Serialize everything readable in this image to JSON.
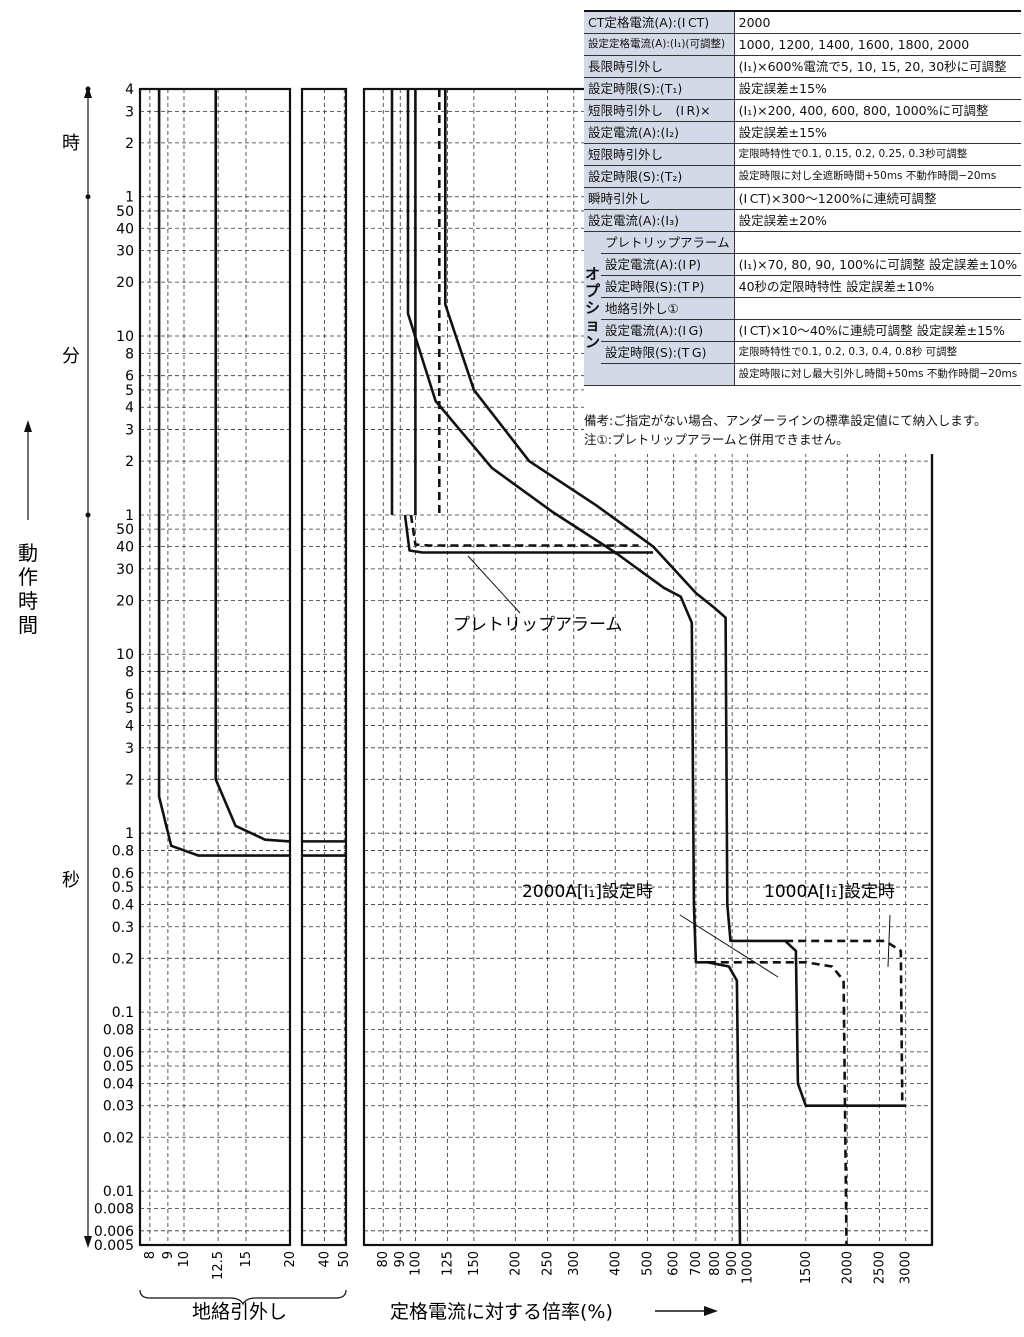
{
  "chart_data": {
    "type": "line",
    "title": "",
    "ylabel": "動作時間",
    "xlabel": "定格電流に対する倍率(%)",
    "xlabel_ground": "地絡引外し",
    "y_scale": "log",
    "ylim": [
      0.005,
      14400
    ],
    "y_ticks": [
      {
        "v": 0.005,
        "l": "0.005"
      },
      {
        "v": 0.006,
        "l": "0.006"
      },
      {
        "v": 0.008,
        "l": "0.008"
      },
      {
        "v": 0.01,
        "l": "0.01"
      },
      {
        "v": 0.02,
        "l": "0.02"
      },
      {
        "v": 0.03,
        "l": "0.03"
      },
      {
        "v": 0.04,
        "l": "0.04"
      },
      {
        "v": 0.05,
        "l": "0.05"
      },
      {
        "v": 0.06,
        "l": "0.06"
      },
      {
        "v": 0.08,
        "l": "0.08"
      },
      {
        "v": 0.1,
        "l": "0.1"
      },
      {
        "v": 0.2,
        "l": "0.2"
      },
      {
        "v": 0.3,
        "l": "0.3"
      },
      {
        "v": 0.4,
        "l": "0.4"
      },
      {
        "v": 0.5,
        "l": "0.5"
      },
      {
        "v": 0.6,
        "l": "0.6"
      },
      {
        "v": 0.8,
        "l": "0.8"
      },
      {
        "v": 1,
        "l": "1"
      },
      {
        "v": 2,
        "l": "2"
      },
      {
        "v": 3,
        "l": "3"
      },
      {
        "v": 4,
        "l": "4"
      },
      {
        "v": 5,
        "l": "5"
      },
      {
        "v": 6,
        "l": "6"
      },
      {
        "v": 8,
        "l": "8"
      },
      {
        "v": 10,
        "l": "10"
      },
      {
        "v": 20,
        "l": "20"
      },
      {
        "v": 30,
        "l": "30"
      },
      {
        "v": 40,
        "l": "40"
      },
      {
        "v": 50,
        "l": "50"
      },
      {
        "v": 60,
        "l": "1"
      },
      {
        "v": 120,
        "l": "2"
      },
      {
        "v": 180,
        "l": "3"
      },
      {
        "v": 240,
        "l": "4"
      },
      {
        "v": 300,
        "l": "5"
      },
      {
        "v": 360,
        "l": "6"
      },
      {
        "v": 480,
        "l": "8"
      },
      {
        "v": 600,
        "l": "10"
      },
      {
        "v": 1200,
        "l": "20"
      },
      {
        "v": 1800,
        "l": "30"
      },
      {
        "v": 2400,
        "l": "40"
      },
      {
        "v": 3000,
        "l": "50"
      },
      {
        "v": 3600,
        "l": "1"
      },
      {
        "v": 7200,
        "l": "2"
      },
      {
        "v": 10800,
        "l": "3"
      },
      {
        "v": 14400,
        "l": "4"
      }
    ],
    "time_units": [
      {
        "label": "時",
        "from": 3600,
        "to": 14400
      },
      {
        "label": "分",
        "from": 60,
        "to": 3600
      },
      {
        "label": "秒",
        "from": 0.005,
        "to": 60
      }
    ],
    "x_panels": [
      {
        "name": "ground",
        "ticks": [
          "8",
          "9",
          "10",
          "12.5",
          "15",
          "20"
        ]
      },
      {
        "name": "mid",
        "ticks": [
          "40",
          "50"
        ]
      },
      {
        "name": "main",
        "ticks": [
          "80",
          "90",
          "100",
          "125",
          "150",
          "200",
          "250",
          "300",
          "400",
          "500",
          "600",
          "700",
          "800",
          "900",
          "1000",
          "1500",
          "2000",
          "2500",
          "3000"
        ]
      }
    ],
    "series": [
      {
        "name": "2000A[I₁]設定時",
        "style": "solid",
        "points": [
          [
            95,
            14400
          ],
          [
            95,
            800
          ],
          [
            115,
            260
          ],
          [
            170,
            110
          ],
          [
            260,
            62
          ],
          [
            400,
            37
          ],
          [
            560,
            23.5
          ],
          [
            630,
            21
          ],
          [
            680,
            15
          ],
          [
            690,
            0.4
          ],
          [
            700,
            0.19
          ],
          [
            760,
            0.19
          ],
          [
            880,
            0.18
          ],
          [
            930,
            0.15
          ],
          [
            950,
            0.005
          ]
        ]
      },
      {
        "name": "2000A[I₁]設定時",
        "style": "dashed",
        "points": [
          [
            760,
            0.19
          ],
          [
            1500,
            0.19
          ],
          [
            1800,
            0.18
          ],
          [
            1950,
            0.15
          ],
          [
            1990,
            0.005
          ]
        ]
      },
      {
        "name": "1000A[I₁]設定時",
        "style": "solid",
        "points": [
          [
            123,
            14400
          ],
          [
            123,
            900
          ],
          [
            150,
            300
          ],
          [
            220,
            120
          ],
          [
            350,
            68
          ],
          [
            520,
            40
          ],
          [
            700,
            22
          ],
          [
            800,
            18
          ],
          [
            860,
            16
          ],
          [
            870,
            0.4
          ],
          [
            890,
            0.25
          ],
          [
            1300,
            0.25
          ],
          [
            1400,
            0.22
          ],
          [
            1420,
            0.04
          ],
          [
            1500,
            0.03
          ],
          [
            3000,
            0.03
          ]
        ]
      },
      {
        "name": "1000A[I₁]設定時",
        "style": "dashed",
        "points": [
          [
            1300,
            0.25
          ],
          [
            2600,
            0.25
          ],
          [
            2900,
            0.22
          ],
          [
            2930,
            0.03
          ]
        ]
      },
      {
        "name": "プレトリップアラーム",
        "style": "solid",
        "points": [
          [
            93,
            60
          ],
          [
            96,
            38
          ],
          [
            105,
            37
          ],
          [
            520,
            37
          ]
        ]
      },
      {
        "name": "",
        "style": "dashed",
        "points": [
          [
            97,
            60
          ],
          [
            100,
            41
          ],
          [
            110,
            40.5
          ],
          [
            470,
            40.5
          ]
        ]
      },
      {
        "name": "",
        "style": "solid",
        "points": [
          [
            100,
            14400
          ],
          [
            100,
            60
          ]
        ]
      },
      {
        "name": "",
        "style": "solid",
        "points": [
          [
            85,
            14400
          ],
          [
            85,
            60
          ]
        ]
      },
      {
        "name": "",
        "style": "dashed",
        "points": [
          [
            118,
            14400
          ],
          [
            118,
            60
          ]
        ]
      }
    ],
    "ground_series": [
      {
        "name": "",
        "points": [
          [
            8.5,
            14400
          ],
          [
            8.5,
            1.6
          ],
          [
            9.2,
            0.85
          ],
          [
            11,
            0.75
          ],
          [
            20,
            0.75
          ]
        ]
      },
      {
        "name": "",
        "points": [
          [
            12.3,
            14400
          ],
          [
            12.3,
            2
          ],
          [
            14,
            1.1
          ],
          [
            17,
            0.92
          ],
          [
            20,
            0.9
          ]
        ]
      }
    ],
    "annotations": [
      {
        "text": "プレトリップアラーム"
      },
      {
        "text": "2000A[I₁]設定時"
      },
      {
        "text": "1000A[I₁]設定時"
      }
    ]
  },
  "spec_table": {
    "ct_label": "CT定格電流(A):(I CT)",
    "ct_value": "2000",
    "rated_label": "設定定格電流(A):(I₁)(可調整)",
    "rated_value": "1000, 1200, 1400, 1600, 1800, 2000",
    "long_label_1": "長限時引外し",
    "long_label_2": "設定時限(S):(T₁)",
    "long_value_1": "(I₁)×600%電流で5, 10, 15, 20, 30秒に可調整",
    "long_value_2": "設定誤差±15%",
    "short_cur_label_1": "短限時引外し　(I R)×",
    "short_cur_label_2": "設定電流(A):(I₂)",
    "short_cur_value_1": "(I₁)×200, 400, 600, 800, 1000%に可調整",
    "short_cur_value_2": "設定誤差±15%",
    "short_time_label_1": "短限時引外し",
    "short_time_label_2": "設定時限(S):(T₂)",
    "short_time_value_1": "定限時特性で0.1, 0.15, 0.2, 0.25, 0.3秒可調整",
    "short_time_value_2": "設定時限に対し全遮断時間+50ms 不動作時間−20ms",
    "inst_label_1": "瞬時引外し",
    "inst_label_2": "設定電流(A):(I₃)",
    "inst_value_1": "(I CT)×300〜1200%に連続可調整",
    "inst_value_2": "設定誤差±20%",
    "option_label": "オプション",
    "pretrip_label": "プレトリップアラーム",
    "pretrip_cur_label": "設定電流(A):(I P)",
    "pretrip_cur_value": "(I₁)×70, 80, 90, 100%に可調整 設定誤差±10%",
    "pretrip_time_label": "設定時限(S):(T P)",
    "pretrip_time_value": "40秒の定限時特性 設定誤差±10%",
    "ground_label": "地絡引外し①",
    "ground_cur_label": "設定電流(A):(I G)",
    "ground_cur_value": "(I CT)×10〜40%に連続可調整 設定誤差±15%",
    "ground_time_label": "設定時限(S):(T G)",
    "ground_time_value_1": "定限時特性で0.1, 0.2, 0.3, 0.4, 0.8秒 可調整",
    "ground_time_value_2": "設定時限に対し最大引外し時間+50ms 不動作時間−20ms"
  },
  "notes": {
    "remark": "備考:ご指定がない場合、アンダーラインの標準設定値にて納入します。",
    "note1": "注①:プレトリップアラームと併用できません。"
  }
}
